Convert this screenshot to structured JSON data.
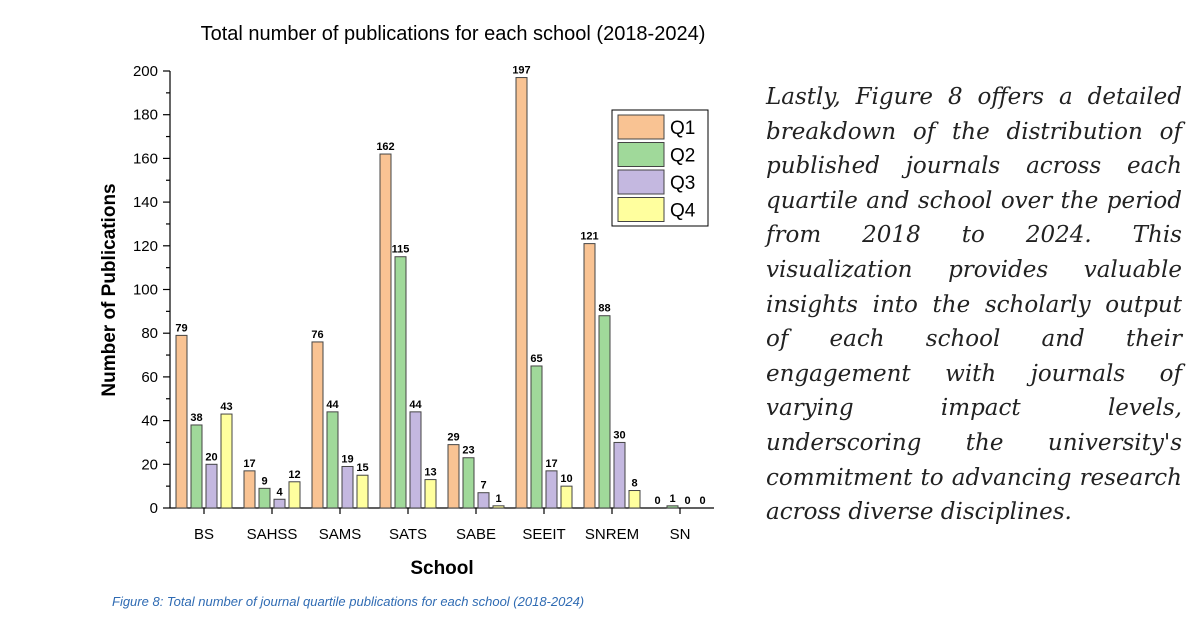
{
  "paragraph": "Lastly, Figure 8 offers a detailed breakdown of the distribution of published journals across each quartile and school over the period from 2018 to 2024. This visualization provides valuable insights into the scholarly output of each school and their engagement with journals of varying impact levels, underscoring the university's commitment to advancing research across diverse disciplines.",
  "caption": "Figure 8: Total number of journal quartile publications for each school (2018-2024)",
  "chart_data": {
    "type": "bar",
    "title": "Total number of publications for each school (2018-2024)",
    "xlabel": "School",
    "ylabel": "Number of Publications",
    "ylim": [
      0,
      200
    ],
    "yticks": [
      0,
      20,
      40,
      60,
      80,
      100,
      120,
      140,
      160,
      180,
      200
    ],
    "categories": [
      "BS",
      "SAHSS",
      "SAMS",
      "SATS",
      "SABE",
      "SEEIT",
      "SNREM",
      "SN"
    ],
    "series": [
      {
        "name": "Q1",
        "color": "#f9c393",
        "values": [
          79,
          17,
          76,
          162,
          29,
          197,
          121,
          0
        ]
      },
      {
        "name": "Q2",
        "color": "#a0d99a",
        "values": [
          38,
          9,
          44,
          115,
          23,
          65,
          88,
          1
        ]
      },
      {
        "name": "Q3",
        "color": "#c4b8e0",
        "values": [
          20,
          4,
          19,
          44,
          7,
          17,
          30,
          0
        ]
      },
      {
        "name": "Q4",
        "color": "#ffff9e",
        "values": [
          43,
          12,
          15,
          13,
          1,
          10,
          8,
          0
        ]
      }
    ],
    "legend_position": "top-right",
    "grid": false
  }
}
